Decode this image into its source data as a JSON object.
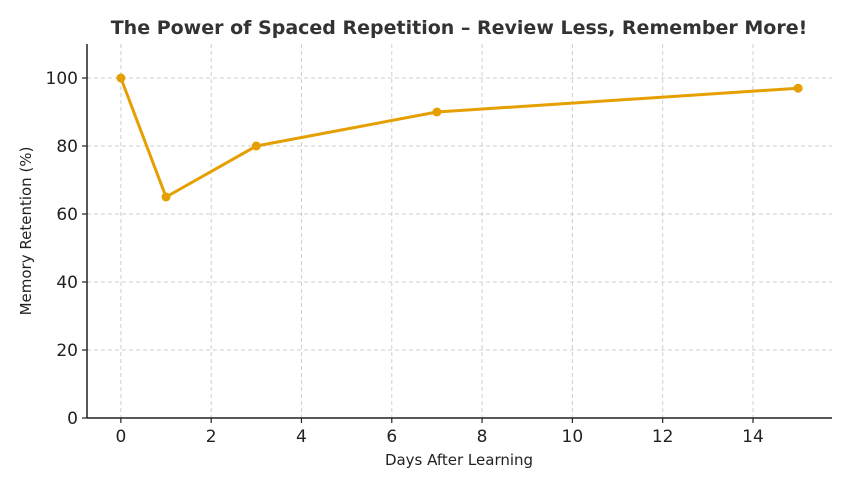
{
  "chart_data": {
    "type": "line",
    "title": "The Power of Spaced Repetition – Review Less, Remember More!",
    "xlabel": "Days After Learning",
    "ylabel": "Memory Retention (%)",
    "xlim": [
      -0.75,
      15.75
    ],
    "ylim": [
      0,
      110
    ],
    "xticks": [
      0,
      2,
      4,
      6,
      8,
      10,
      12,
      14
    ],
    "yticks": [
      0,
      20,
      40,
      60,
      80,
      100
    ],
    "grid": true,
    "series": [
      {
        "x": [
          0,
          1,
          3,
          7,
          15
        ],
        "y": [
          100,
          65,
          80,
          90,
          97
        ],
        "color": "#e69f00"
      }
    ]
  }
}
